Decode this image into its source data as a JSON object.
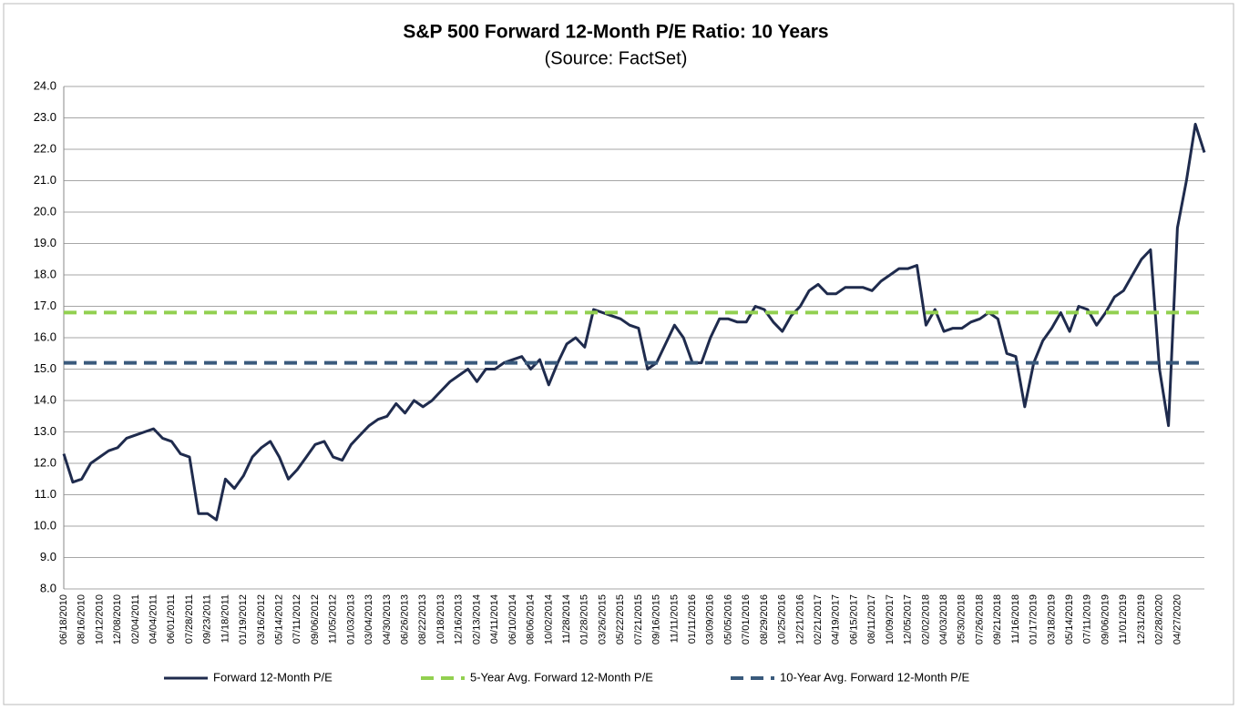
{
  "chart_data": {
    "type": "line",
    "title": "S&P 500 Forward 12-Month P/E Ratio: 10 Years",
    "subtitle": "(Source: FactSet)",
    "categories": [
      "06/18/2010",
      null,
      "08/16/2010",
      null,
      "10/12/2010",
      null,
      "12/08/2010",
      null,
      "02/04/2011",
      null,
      "04/04/2011",
      null,
      "06/01/2011",
      null,
      "07/28/2011",
      null,
      "09/23/2011",
      null,
      "11/18/2011",
      null,
      "01/19/2012",
      null,
      "03/16/2012",
      null,
      "05/14/2012",
      null,
      "07/11/2012",
      null,
      "09/06/2012",
      null,
      "11/05/2012",
      null,
      "01/03/2013",
      null,
      "03/04/2013",
      null,
      "04/30/2013",
      null,
      "06/26/2013",
      null,
      "08/22/2013",
      null,
      "10/18/2013",
      null,
      "12/16/2013",
      null,
      "02/13/2014",
      null,
      "04/11/2014",
      null,
      "06/10/2014",
      null,
      "08/06/2014",
      null,
      "10/02/2014",
      null,
      "11/28/2014",
      null,
      "01/28/2015",
      null,
      "03/26/2015",
      null,
      "05/22/2015",
      null,
      "07/21/2015",
      null,
      "09/16/2015",
      null,
      "11/11/2015",
      null,
      "01/11/2016",
      null,
      "03/09/2016",
      null,
      "05/05/2016",
      null,
      "07/01/2016",
      null,
      "08/29/2016",
      null,
      "10/25/2016",
      null,
      "12/21/2016",
      null,
      "02/21/2017",
      null,
      "04/19/2017",
      null,
      "06/15/2017",
      null,
      "08/11/2017",
      null,
      "10/09/2017",
      null,
      "12/05/2017",
      null,
      "02/02/2018",
      null,
      "04/03/2018",
      null,
      "05/30/2018",
      null,
      "07/26/2018",
      null,
      "09/21/2018",
      null,
      "11/16/2018",
      null,
      "01/17/2019",
      null,
      "03/18/2019",
      null,
      "05/14/2019",
      null,
      "07/11/2019",
      null,
      "09/06/2019",
      null,
      "11/01/2019",
      null,
      "12/31/2019",
      null,
      "02/28/2020",
      null,
      "04/27/2020",
      null,
      null,
      null
    ],
    "series": [
      {
        "name": "Forward 12-Month P/E",
        "color": "#1f2b4d",
        "values": [
          12.3,
          11.4,
          11.5,
          12.0,
          12.2,
          12.4,
          12.5,
          12.8,
          12.9,
          13.0,
          13.1,
          12.8,
          12.7,
          12.3,
          12.2,
          10.4,
          10.4,
          10.2,
          11.5,
          11.2,
          11.6,
          12.2,
          12.5,
          12.7,
          12.2,
          11.5,
          11.8,
          12.2,
          12.6,
          12.7,
          12.2,
          12.1,
          12.6,
          12.9,
          13.2,
          13.4,
          13.5,
          13.9,
          13.6,
          14.0,
          13.8,
          14.0,
          14.3,
          14.6,
          14.8,
          15.0,
          14.6,
          15.0,
          15.0,
          15.2,
          15.3,
          15.4,
          15.0,
          15.3,
          14.5,
          15.2,
          15.8,
          16.0,
          15.7,
          16.9,
          16.8,
          16.7,
          16.6,
          16.4,
          16.3,
          15.0,
          15.2,
          15.8,
          16.4,
          16.0,
          15.2,
          15.2,
          16.0,
          16.6,
          16.6,
          16.5,
          16.5,
          17.0,
          16.9,
          16.5,
          16.2,
          16.7,
          17.0,
          17.5,
          17.7,
          17.4,
          17.4,
          17.6,
          17.6,
          17.6,
          17.5,
          17.8,
          18.0,
          18.2,
          18.2,
          18.3,
          16.4,
          16.9,
          16.2,
          16.3,
          16.3,
          16.5,
          16.6,
          16.8,
          16.6,
          15.5,
          15.4,
          13.8,
          15.2,
          15.9,
          16.3,
          16.8,
          16.2,
          17.0,
          16.9,
          16.4,
          16.8,
          17.3,
          17.5,
          18.0,
          18.5,
          18.8,
          15.0,
          13.2,
          19.5,
          21.0,
          22.8,
          21.9
        ]
      },
      {
        "name": "5-Year Avg. Forward 12-Month P/E",
        "color": "#92d050",
        "value": 16.8
      },
      {
        "name": "10-Year Avg. Forward 12-Month P/E",
        "color": "#3a5a7c",
        "value": 15.2
      }
    ],
    "ylim": [
      8,
      24
    ],
    "yticks": [
      {
        "value": 8,
        "label": "8.0"
      },
      {
        "value": 9,
        "label": "9.0"
      },
      {
        "value": 10,
        "label": "10.0"
      },
      {
        "value": 11,
        "label": "11.0"
      },
      {
        "value": 12,
        "label": "12.0"
      },
      {
        "value": 13,
        "label": "13.0"
      },
      {
        "value": 14,
        "label": "14.0"
      },
      {
        "value": 15,
        "label": "15.0"
      },
      {
        "value": 16,
        "label": "16.0"
      },
      {
        "value": 17,
        "label": "17.0"
      },
      {
        "value": 18,
        "label": "18.0"
      },
      {
        "value": 19,
        "label": "19.0"
      },
      {
        "value": 20,
        "label": "20.0"
      },
      {
        "value": 21,
        "label": "21.0"
      },
      {
        "value": 22,
        "label": "22.0"
      },
      {
        "value": 23,
        "label": "23.0"
      },
      {
        "value": 24,
        "label": "24.0"
      }
    ],
    "grid": true
  }
}
